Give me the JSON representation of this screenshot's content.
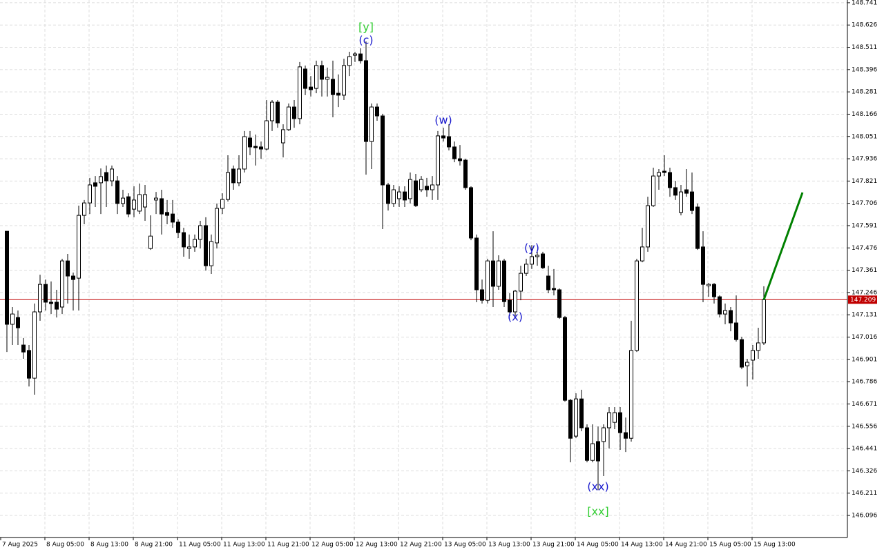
{
  "chart_data": {
    "type": "candlestick",
    "x_labels": [
      "7 Aug 2025",
      "8 Aug 05:00",
      "8 Aug 13:00",
      "8 Aug 21:00",
      "11 Aug 05:00",
      "11 Aug 13:00",
      "11 Aug 21:00",
      "12 Aug 05:00",
      "12 Aug 13:00",
      "12 Aug 21:00",
      "13 Aug 05:00",
      "13 Aug 13:00",
      "13 Aug 21:00",
      "14 Aug 05:00",
      "14 Aug 13:00",
      "14 Aug 21:00",
      "15 Aug 05:00",
      "15 Aug 13:00"
    ],
    "ylim": [
      145.982,
      148.755
    ],
    "yticks": [
      148.741,
      148.626,
      148.511,
      148.396,
      148.281,
      148.166,
      148.051,
      147.936,
      147.821,
      147.706,
      147.591,
      147.476,
      147.361,
      147.246,
      147.131,
      147.016,
      146.901,
      146.786,
      146.671,
      146.556,
      146.441,
      146.326,
      146.211,
      146.096
    ],
    "grid": true,
    "bull_color": "#ffffff",
    "bear_color": "#000000",
    "candles": [
      [
        147.562,
        147.562,
        146.939,
        147.082
      ],
      [
        147.082,
        147.171,
        146.975,
        147.135
      ],
      [
        147.117,
        147.153,
        146.975,
        147.064
      ],
      [
        146.975,
        147.011,
        146.904,
        146.939
      ],
      [
        146.947,
        146.975,
        146.761,
        146.804
      ],
      [
        146.804,
        147.189,
        146.719,
        147.146
      ],
      [
        147.146,
        147.338,
        147.1,
        147.288
      ],
      [
        147.288,
        147.313,
        147.153,
        147.196
      ],
      [
        147.196,
        147.303,
        147.135,
        147.189
      ],
      [
        147.196,
        147.26,
        147.117,
        147.16
      ],
      [
        147.171,
        147.42,
        147.135,
        147.409
      ],
      [
        147.409,
        147.445,
        147.189,
        147.331
      ],
      [
        147.331,
        147.349,
        147.153,
        147.313
      ],
      [
        147.32,
        147.694,
        147.153,
        147.644
      ],
      [
        147.644,
        147.723,
        147.598,
        147.708
      ],
      [
        147.708,
        147.837,
        147.651,
        147.801
      ],
      [
        147.812,
        147.847,
        147.687,
        147.794
      ],
      [
        147.812,
        147.886,
        147.651,
        147.844
      ],
      [
        147.865,
        147.901,
        147.687,
        147.822
      ],
      [
        147.822,
        147.901,
        147.794,
        147.883
      ],
      [
        147.822,
        147.847,
        147.651,
        147.705
      ],
      [
        147.705,
        147.776,
        147.687,
        147.733
      ],
      [
        147.74,
        147.758,
        147.634,
        147.651
      ],
      [
        147.676,
        147.794,
        147.634,
        147.723
      ],
      [
        147.666,
        147.808,
        147.651,
        147.751
      ],
      [
        147.687,
        147.801,
        147.616,
        147.751
      ],
      [
        147.473,
        147.644,
        147.466,
        147.537
      ],
      [
        147.723,
        147.765,
        147.651,
        147.733
      ],
      [
        147.73,
        147.776,
        147.545,
        147.651
      ],
      [
        147.659,
        147.723,
        147.598,
        147.644
      ],
      [
        147.651,
        147.723,
        147.58,
        147.609
      ],
      [
        147.609,
        147.623,
        147.527,
        147.555
      ],
      [
        147.555,
        147.58,
        147.431,
        147.481
      ],
      [
        147.473,
        147.545,
        147.42,
        147.481
      ],
      [
        147.481,
        147.545,
        147.456,
        147.52
      ],
      [
        147.52,
        147.616,
        147.473,
        147.591
      ],
      [
        147.591,
        147.634,
        147.359,
        147.384
      ],
      [
        147.384,
        147.545,
        147.342,
        147.509
      ],
      [
        147.502,
        147.705,
        147.473,
        147.68
      ],
      [
        147.68,
        147.758,
        147.651,
        147.726
      ],
      [
        147.726,
        147.954,
        147.715,
        147.865
      ],
      [
        147.883,
        147.901,
        147.776,
        147.812
      ],
      [
        147.812,
        147.954,
        147.794,
        147.883
      ],
      [
        147.883,
        148.079,
        147.865,
        148.05
      ],
      [
        148.043,
        148.079,
        147.954,
        147.997
      ],
      [
        148.0,
        148.061,
        147.901,
        147.993
      ],
      [
        147.997,
        148.025,
        147.936,
        147.986
      ],
      [
        147.986,
        148.239,
        147.979,
        148.132
      ],
      [
        148.132,
        148.239,
        148.079,
        148.228
      ],
      [
        148.228,
        148.239,
        148.096,
        148.121
      ],
      [
        148.018,
        148.114,
        147.943,
        148.086
      ],
      [
        148.086,
        148.221,
        148.079,
        148.203
      ],
      [
        148.203,
        148.239,
        148.096,
        148.143
      ],
      [
        148.143,
        148.435,
        148.114,
        148.41
      ],
      [
        148.399,
        148.417,
        148.264,
        148.299
      ],
      [
        148.306,
        148.363,
        148.257,
        148.292
      ],
      [
        148.299,
        148.442,
        148.274,
        148.417
      ],
      [
        148.417,
        148.442,
        148.257,
        148.346
      ],
      [
        148.346,
        148.406,
        148.257,
        148.356
      ],
      [
        148.346,
        148.442,
        148.15,
        148.267
      ],
      [
        148.274,
        148.371,
        148.203,
        148.264
      ],
      [
        148.264,
        148.452,
        148.239,
        148.417
      ],
      [
        148.417,
        148.488,
        148.363,
        148.463
      ],
      [
        148.47,
        148.488,
        148.435,
        148.477
      ],
      [
        148.477,
        148.506,
        148.427,
        148.442
      ],
      [
        148.442,
        148.541,
        147.854,
        148.025
      ],
      [
        148.025,
        148.221,
        147.883,
        148.203
      ],
      [
        148.203,
        148.221,
        148.132,
        148.157
      ],
      [
        148.157,
        148.168,
        147.573,
        147.801
      ],
      [
        147.801,
        147.812,
        147.669,
        147.705
      ],
      [
        147.705,
        147.801,
        147.687,
        147.776
      ],
      [
        147.73,
        147.794,
        147.687,
        147.765
      ],
      [
        147.765,
        147.794,
        147.687,
        147.723
      ],
      [
        147.73,
        147.865,
        147.705,
        147.829
      ],
      [
        147.822,
        147.858,
        147.687,
        147.694
      ],
      [
        147.776,
        147.847,
        147.765,
        147.829
      ],
      [
        147.794,
        147.837,
        147.74,
        147.776
      ],
      [
        147.776,
        147.847,
        147.723,
        147.801
      ],
      [
        147.801,
        148.079,
        147.723,
        148.054
      ],
      [
        148.054,
        148.096,
        148.025,
        148.043
      ],
      [
        148.05,
        148.114,
        147.979,
        147.997
      ],
      [
        147.997,
        148.025,
        147.918,
        147.936
      ],
      [
        147.936,
        148.007,
        147.901,
        147.926
      ],
      [
        147.929,
        147.936,
        147.776,
        147.787
      ],
      [
        147.787,
        147.794,
        147.516,
        147.527
      ],
      [
        147.527,
        147.545,
        147.196,
        147.26
      ],
      [
        147.26,
        147.313,
        147.189,
        147.206
      ],
      [
        147.206,
        147.42,
        147.189,
        147.409
      ],
      [
        147.409,
        147.562,
        147.171,
        147.278
      ],
      [
        147.278,
        147.438,
        147.26,
        147.409
      ],
      [
        147.409,
        147.42,
        147.171,
        147.199
      ],
      [
        147.206,
        147.242,
        147.125,
        147.146
      ],
      [
        147.146,
        147.26,
        147.125,
        147.253
      ],
      [
        147.253,
        147.384,
        147.206,
        147.345
      ],
      [
        147.345,
        147.42,
        147.331,
        147.392
      ],
      [
        147.392,
        147.491,
        147.367,
        147.431
      ],
      [
        147.431,
        147.466,
        147.384,
        147.438
      ],
      [
        147.445,
        147.456,
        147.367,
        147.374
      ],
      [
        147.331,
        147.384,
        147.242,
        147.26
      ],
      [
        147.267,
        147.367,
        147.231,
        147.26
      ],
      [
        147.26,
        147.267,
        147.11,
        147.117
      ],
      [
        147.117,
        147.125,
        146.683,
        146.69
      ],
      [
        146.69,
        146.697,
        146.37,
        146.494
      ],
      [
        146.505,
        146.726,
        146.494,
        146.697
      ],
      [
        146.697,
        146.744,
        146.53,
        146.548
      ],
      [
        146.548,
        146.566,
        146.37,
        146.38
      ],
      [
        146.38,
        146.566,
        146.37,
        146.466
      ],
      [
        146.477,
        146.555,
        146.227,
        146.377
      ],
      [
        146.477,
        146.566,
        146.299,
        146.548
      ],
      [
        146.548,
        146.655,
        146.441,
        146.626
      ],
      [
        146.576,
        146.655,
        146.541,
        146.626
      ],
      [
        146.626,
        146.655,
        146.434,
        146.523
      ],
      [
        146.523,
        146.601,
        146.423,
        146.494
      ],
      [
        146.494,
        147.1,
        146.477,
        146.947
      ],
      [
        146.947,
        147.42,
        146.939,
        147.409
      ],
      [
        147.409,
        147.58,
        147.402,
        147.481
      ],
      [
        147.481,
        147.74,
        147.456,
        147.694
      ],
      [
        147.694,
        147.89,
        147.687,
        147.847
      ],
      [
        147.847,
        147.883,
        147.776,
        147.865
      ],
      [
        147.872,
        147.954,
        147.847,
        147.865
      ],
      [
        147.865,
        147.89,
        147.74,
        147.787
      ],
      [
        147.787,
        147.822,
        147.723,
        147.748
      ],
      [
        147.659,
        147.801,
        147.644,
        147.765
      ],
      [
        147.776,
        147.883,
        147.74,
        147.758
      ],
      [
        147.765,
        147.865,
        147.651,
        147.669
      ],
      [
        147.687,
        147.705,
        147.466,
        147.473
      ],
      [
        147.481,
        147.562,
        147.196,
        147.288
      ],
      [
        147.281,
        147.295,
        147.224,
        147.288
      ],
      [
        147.288,
        147.295,
        147.189,
        147.224
      ],
      [
        147.224,
        147.231,
        147.117,
        147.135
      ],
      [
        147.135,
        147.189,
        147.082,
        147.153
      ],
      [
        147.153,
        147.171,
        147.046,
        147.089
      ],
      [
        147.089,
        147.231,
        146.993,
        147.003
      ],
      [
        147.003,
        147.018,
        146.85,
        146.861
      ],
      [
        146.868,
        146.904,
        146.761,
        146.886
      ],
      [
        146.897,
        146.975,
        146.797,
        146.947
      ],
      [
        146.947,
        147.064,
        146.904,
        146.986
      ],
      [
        146.986,
        147.278,
        146.975,
        147.209
      ]
    ],
    "current_price": 147.209,
    "current_price_color": "#c00000",
    "projection": {
      "values": [
        147.209,
        147.762
      ],
      "color": "#008000"
    },
    "annotations": [
      {
        "text": "[y]",
        "color": "#32cd32"
      },
      {
        "text": "(c)",
        "color": "#1a1acd"
      },
      {
        "text": "(w)",
        "color": "#1a1acd"
      },
      {
        "text": "(x)",
        "color": "#1a1acd"
      },
      {
        "text": "(y)",
        "color": "#1a1acd"
      },
      {
        "text": "(xx)",
        "color": "#1a1acd"
      },
      {
        "text": "[xx]",
        "color": "#32cd32"
      }
    ]
  }
}
